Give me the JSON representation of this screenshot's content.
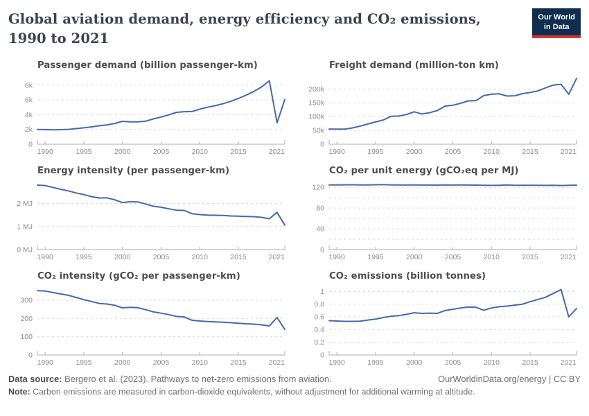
{
  "header": {
    "title": "Global aviation demand, energy efficiency and CO₂ emissions, 1990 to 2021",
    "logo_line1": "Our World",
    "logo_line2": "in Data"
  },
  "colors": {
    "line": "#4569a9",
    "grid": "#dadada",
    "axis": "#aeaeae",
    "tick_text": "#8c8c8c",
    "logo_navy": "#0f2d4e",
    "logo_red": "#d0372e"
  },
  "footer": {
    "source_label": "Data source:",
    "source_text": " Bergero et al. (2023). Pathways to net-zero emissions from aviation.",
    "credit": "OurWorldinData.org/energy | CC BY",
    "note_label": "Note:",
    "note_text": " Carbon emissions are measured in carbon-dioxide equivalents, without adjustment for additional warming at altitude."
  },
  "chart_data": [
    {
      "type": "line",
      "title": "Passenger demand (billion passenger-km)",
      "xlabel": "",
      "ylabel": "",
      "grid": true,
      "legend_position": "none",
      "x": [
        1989,
        1990,
        1991,
        1992,
        1993,
        1994,
        1995,
        1996,
        1997,
        1998,
        1999,
        2000,
        2001,
        2002,
        2003,
        2004,
        2005,
        2006,
        2007,
        2008,
        2009,
        2010,
        2011,
        2012,
        2013,
        2014,
        2015,
        2016,
        2017,
        2018,
        2019,
        2020,
        2021
      ],
      "values": [
        2000,
        1980,
        1950,
        1970,
        2010,
        2110,
        2220,
        2350,
        2500,
        2620,
        2820,
        3100,
        3030,
        3020,
        3120,
        3430,
        3680,
        3980,
        4320,
        4400,
        4420,
        4750,
        5000,
        5220,
        5480,
        5800,
        6200,
        6650,
        7150,
        7750,
        8600,
        2900,
        6050
      ],
      "ylim": [
        0,
        9200
      ],
      "yticks": [
        {
          "v": 0,
          "l": "0"
        },
        {
          "v": 2000,
          "l": "2k"
        },
        {
          "v": 4000,
          "l": "4k"
        },
        {
          "v": 6000,
          "l": "6k"
        },
        {
          "v": 8000,
          "l": "8k"
        }
      ],
      "minor_yticks": [],
      "xticks": [
        1990,
        1995,
        2000,
        2005,
        2010,
        2015,
        2021
      ]
    },
    {
      "type": "line",
      "title": "Freight demand (million-ton km)",
      "xlabel": "",
      "ylabel": "",
      "grid": true,
      "legend_position": "none",
      "x": [
        1989,
        1990,
        1991,
        1992,
        1993,
        1994,
        1995,
        1996,
        1997,
        1998,
        1999,
        2000,
        2001,
        2002,
        2003,
        2004,
        2005,
        2006,
        2007,
        2008,
        2009,
        2010,
        2011,
        2012,
        2013,
        2014,
        2015,
        2016,
        2017,
        2018,
        2019,
        2020,
        2021
      ],
      "values": [
        55000,
        54500,
        54800,
        59000,
        65500,
        73000,
        80500,
        87500,
        101000,
        102000,
        107500,
        117500,
        109500,
        114000,
        122000,
        138000,
        141000,
        148000,
        157000,
        158000,
        176000,
        181000,
        182500,
        174500,
        175500,
        183000,
        187500,
        193000,
        204000,
        214000,
        217000,
        181000,
        238000
      ],
      "ylim": [
        0,
        246000
      ],
      "yticks": [
        {
          "v": 0,
          "l": "0"
        },
        {
          "v": 50000,
          "l": "50k"
        },
        {
          "v": 100000,
          "l": "100k"
        },
        {
          "v": 150000,
          "l": "150k"
        },
        {
          "v": 200000,
          "l": "200k"
        }
      ],
      "minor_yticks": [],
      "xticks": [
        1990,
        1995,
        2000,
        2005,
        2010,
        2015,
        2021
      ]
    },
    {
      "type": "line",
      "title": "Energy intensity (per passenger-km)",
      "xlabel": "",
      "ylabel": "",
      "grid": true,
      "legend_position": "none",
      "x": [
        1989,
        1990,
        1991,
        1992,
        1993,
        1994,
        1995,
        1996,
        1997,
        1998,
        1999,
        2000,
        2001,
        2002,
        2003,
        2004,
        2005,
        2006,
        2007,
        2008,
        2009,
        2010,
        2011,
        2012,
        2013,
        2014,
        2015,
        2016,
        2017,
        2018,
        2019,
        2020,
        2021
      ],
      "values": [
        2.8,
        2.78,
        2.7,
        2.62,
        2.55,
        2.46,
        2.39,
        2.3,
        2.24,
        2.25,
        2.16,
        2.04,
        2.08,
        2.07,
        1.98,
        1.88,
        1.84,
        1.77,
        1.71,
        1.7,
        1.56,
        1.52,
        1.5,
        1.49,
        1.48,
        1.46,
        1.45,
        1.44,
        1.43,
        1.4,
        1.34,
        1.62,
        1.06
      ],
      "ylim": [
        0,
        2.95
      ],
      "yticks": [
        {
          "v": 0,
          "l": "0 MJ"
        },
        {
          "v": 1,
          "l": "1 MJ"
        },
        {
          "v": 2,
          "l": "2 MJ"
        }
      ],
      "minor_yticks": [],
      "xticks": [
        1990,
        1995,
        2000,
        2005,
        2010,
        2015,
        2021
      ]
    },
    {
      "type": "line",
      "title": "CO₂ per unit energy (gCO₂eq per MJ)",
      "xlabel": "",
      "ylabel": "",
      "grid": true,
      "legend_position": "none",
      "x": [
        1989,
        1990,
        1991,
        1992,
        1993,
        1994,
        1995,
        1996,
        1997,
        1998,
        1999,
        2000,
        2001,
        2002,
        2003,
        2004,
        2005,
        2006,
        2007,
        2008,
        2009,
        2010,
        2011,
        2012,
        2013,
        2014,
        2015,
        2016,
        2017,
        2018,
        2019,
        2020,
        2021
      ],
      "values": [
        124.6,
        124.7,
        124.9,
        125.0,
        124.7,
        124.6,
        125.0,
        125.2,
        124.7,
        124.6,
        124.5,
        124.6,
        124.5,
        124.4,
        124.3,
        124.6,
        124.5,
        124.6,
        124.4,
        124.3,
        123.9,
        123.8,
        124.1,
        124.6,
        124.1,
        123.9,
        124.0,
        124.1,
        123.8,
        124.0,
        123.5,
        123.9,
        124.3
      ],
      "ylim": [
        0,
        131
      ],
      "yticks": [
        {
          "v": 0,
          "l": "0"
        },
        {
          "v": 40,
          "l": "40"
        },
        {
          "v": 80,
          "l": "80"
        },
        {
          "v": 120,
          "l": "120"
        }
      ],
      "minor_yticks": [
        20,
        60,
        100
      ],
      "xticks": [
        1990,
        1995,
        2000,
        2005,
        2010,
        2015,
        2021
      ]
    },
    {
      "type": "line",
      "title": "CO₂ intensity (gCO₂ per passenger-km)",
      "xlabel": "",
      "ylabel": "",
      "grid": true,
      "legend_position": "none",
      "x": [
        1989,
        1990,
        1991,
        1992,
        1993,
        1994,
        1995,
        1996,
        1997,
        1998,
        1999,
        2000,
        2001,
        2002,
        2003,
        2004,
        2005,
        2006,
        2007,
        2008,
        2009,
        2010,
        2011,
        2012,
        2013,
        2014,
        2015,
        2016,
        2017,
        2018,
        2019,
        2020,
        2021
      ],
      "values": [
        352,
        350,
        342,
        334,
        327,
        315,
        303,
        293,
        282,
        279,
        272,
        258,
        261,
        259,
        248,
        236,
        229,
        221,
        211,
        208,
        190,
        186,
        183,
        181,
        179,
        177,
        174,
        171,
        169,
        165,
        159,
        205,
        140
      ],
      "ylim": [
        0,
        372
      ],
      "yticks": [
        {
          "v": 0,
          "l": "0"
        },
        {
          "v": 100,
          "l": "100"
        },
        {
          "v": 200,
          "l": "200"
        },
        {
          "v": 300,
          "l": "300"
        }
      ],
      "minor_yticks": [],
      "xticks": [
        1990,
        1995,
        2000,
        2005,
        2010,
        2015,
        2021
      ]
    },
    {
      "type": "line",
      "title": "CO₂ emissions (billion tonnes)",
      "xlabel": "",
      "ylabel": "",
      "grid": true,
      "legend_position": "none",
      "x": [
        1989,
        1990,
        1991,
        1992,
        1993,
        1994,
        1995,
        1996,
        1997,
        1998,
        1999,
        2000,
        2001,
        2002,
        2003,
        2004,
        2005,
        2006,
        2007,
        2008,
        2009,
        2010,
        2011,
        2012,
        2013,
        2014,
        2015,
        2016,
        2017,
        2018,
        2019,
        2020,
        2021
      ],
      "values": [
        0.54,
        0.535,
        0.53,
        0.53,
        0.533,
        0.55,
        0.565,
        0.59,
        0.61,
        0.62,
        0.64,
        0.665,
        0.655,
        0.66,
        0.655,
        0.7,
        0.72,
        0.74,
        0.757,
        0.75,
        0.705,
        0.74,
        0.76,
        0.77,
        0.785,
        0.8,
        0.84,
        0.875,
        0.91,
        0.97,
        1.03,
        0.6,
        0.73
      ],
      "ylim": [
        0,
        1.07
      ],
      "yticks": [
        {
          "v": 0,
          "l": "0"
        },
        {
          "v": 0.2,
          "l": "0.2"
        },
        {
          "v": 0.4,
          "l": "0.4"
        },
        {
          "v": 0.6,
          "l": "0.6"
        },
        {
          "v": 0.8,
          "l": "0.8"
        },
        {
          "v": 1,
          "l": "1"
        }
      ],
      "minor_yticks": [],
      "xticks": [
        1990,
        1995,
        2000,
        2005,
        2010,
        2015,
        2021
      ]
    }
  ]
}
